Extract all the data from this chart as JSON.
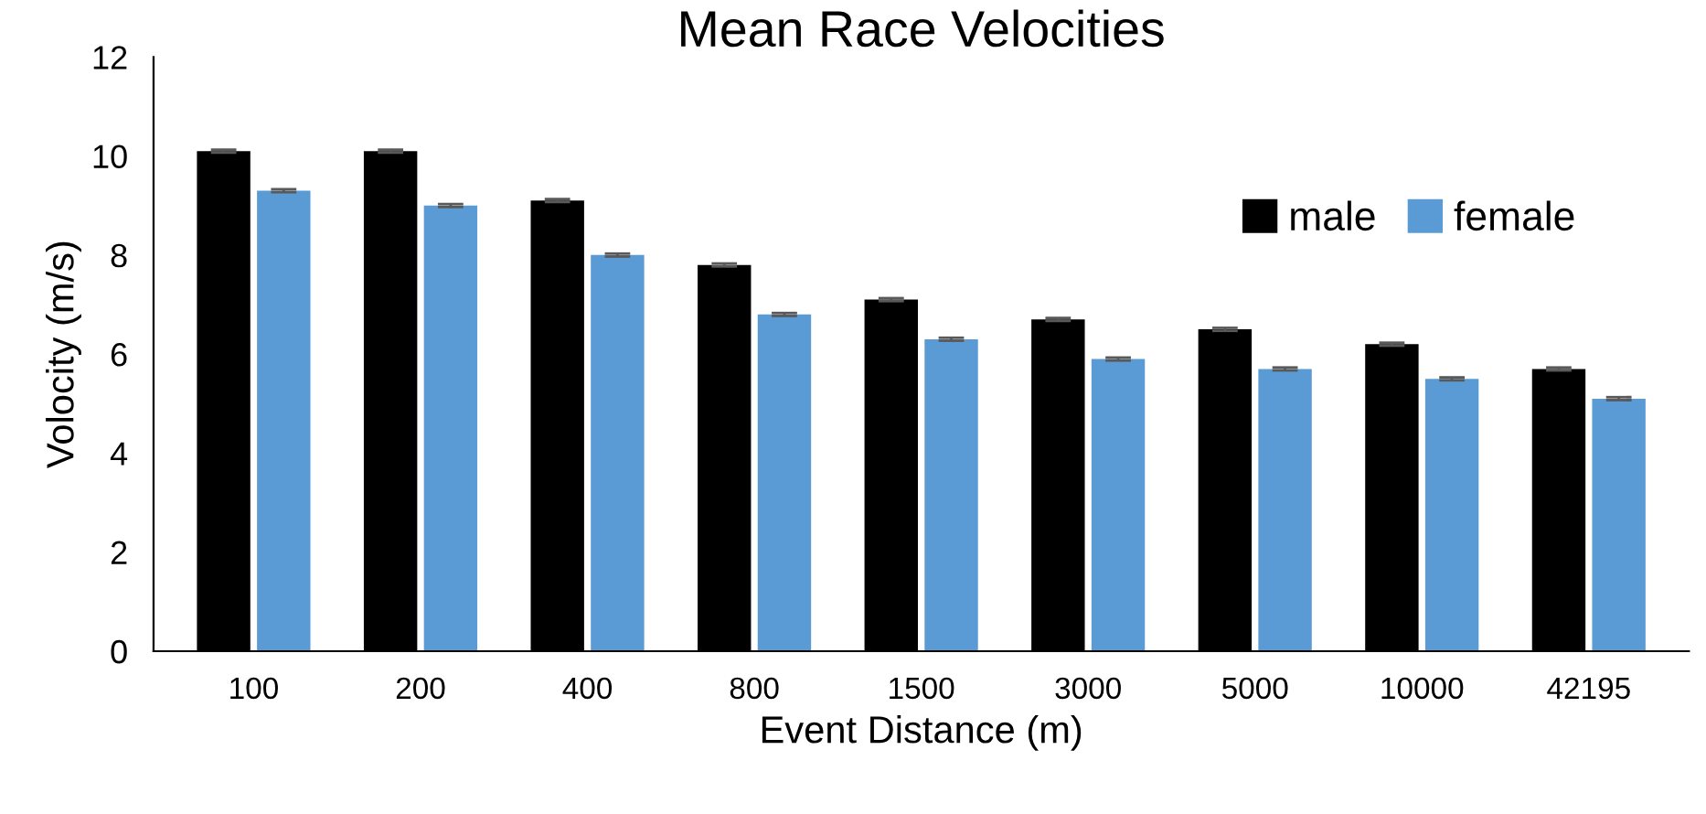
{
  "chart_data": {
    "type": "bar",
    "title": "Mean Race Velocities",
    "xlabel": "Event Distance (m)",
    "ylabel": "Volocity (m/s)",
    "categories": [
      "100",
      "200",
      "400",
      "800",
      "1500",
      "3000",
      "5000",
      "10000",
      "42195"
    ],
    "series": [
      {
        "name": "male",
        "color": "#000000",
        "values": [
          10.1,
          10.1,
          9.1,
          7.8,
          7.1,
          6.7,
          6.5,
          6.2,
          5.7
        ],
        "errors": [
          0.03,
          0.03,
          0.03,
          0.03,
          0.03,
          0.03,
          0.03,
          0.03,
          0.03
        ]
      },
      {
        "name": "female",
        "color": "#5b9bd5",
        "values": [
          9.3,
          9.0,
          8.0,
          6.8,
          6.3,
          5.9,
          5.7,
          5.5,
          5.1
        ],
        "errors": [
          0.03,
          0.03,
          0.03,
          0.03,
          0.03,
          0.03,
          0.03,
          0.03,
          0.03
        ]
      }
    ],
    "ylim": [
      0,
      12
    ],
    "yticks": [
      0,
      2,
      4,
      6,
      8,
      10,
      12
    ],
    "grid": false,
    "legend": "top right"
  }
}
